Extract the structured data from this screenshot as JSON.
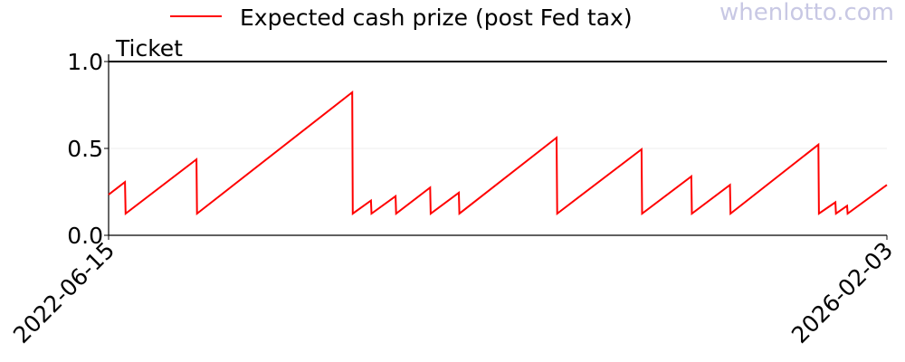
{
  "watermark": "whenlotto.com",
  "chart_data": {
    "type": "line",
    "title": "Ticket",
    "xlabel": "",
    "ylabel": "",
    "xlim": [
      "2022-06-15",
      "2026-02-03"
    ],
    "ylim": [
      0,
      1.0
    ],
    "x_tick_labels": [
      "2022-06-15",
      "2026-02-03"
    ],
    "y_ticks": [
      0.0,
      0.5,
      1.0
    ],
    "y_tick_labels": [
      "0.0",
      "0.5",
      "1.0"
    ],
    "grid": "horizontal at 0.5",
    "legend_position": "top",
    "series": [
      {
        "name": "Expected cash prize (post Fed tax)",
        "color": "#ff0000",
        "points": [
          [
            "2022-06-15",
            0.234
          ],
          [
            "2022-07-13",
            0.307
          ],
          [
            "2022-07-14",
            0.125
          ],
          [
            "2022-11-12",
            0.437
          ],
          [
            "2022-11-13",
            0.125
          ],
          [
            "2023-08-05",
            0.823
          ],
          [
            "2023-08-06",
            0.125
          ],
          [
            "2023-09-06",
            0.2
          ],
          [
            "2023-09-07",
            0.125
          ],
          [
            "2023-10-18",
            0.225
          ],
          [
            "2023-10-19",
            0.125
          ],
          [
            "2023-12-16",
            0.275
          ],
          [
            "2023-12-17",
            0.125
          ],
          [
            "2024-02-03",
            0.245
          ],
          [
            "2024-02-04",
            0.125
          ],
          [
            "2024-07-19",
            0.562
          ],
          [
            "2024-07-20",
            0.125
          ],
          [
            "2024-12-11",
            0.495
          ],
          [
            "2024-12-12",
            0.125
          ],
          [
            "2025-03-06",
            0.339
          ],
          [
            "2025-03-07",
            0.125
          ],
          [
            "2025-05-11",
            0.29
          ],
          [
            "2025-05-12",
            0.125
          ],
          [
            "2025-10-09",
            0.522
          ],
          [
            "2025-10-10",
            0.125
          ],
          [
            "2025-11-07",
            0.19
          ],
          [
            "2025-11-08",
            0.125
          ],
          [
            "2025-11-27",
            0.17
          ],
          [
            "2025-11-28",
            0.125
          ],
          [
            "2026-02-03",
            0.29
          ]
        ]
      }
    ]
  }
}
